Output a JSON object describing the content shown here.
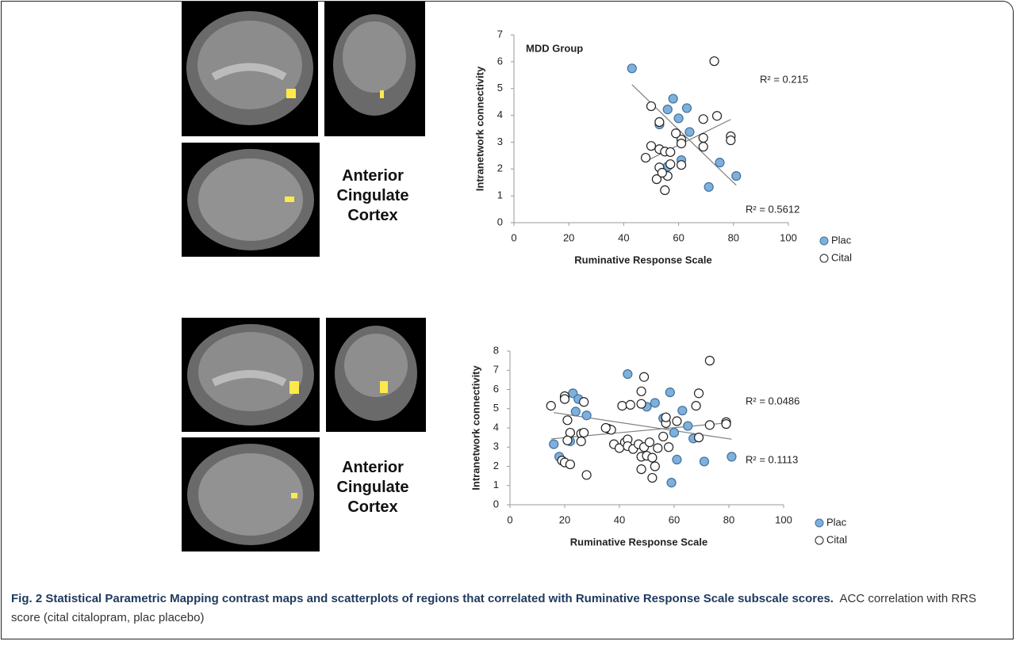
{
  "chart_data": [
    {
      "type": "scatter",
      "xlabel": "Ruminative Response Scale",
      "ylabel": "Intranetwork connectivity",
      "xlim": [
        0,
        100
      ],
      "xticks": [
        0,
        20,
        40,
        60,
        80,
        100
      ],
      "ylim": [
        0,
        7
      ],
      "yticks": [
        0,
        1,
        2,
        3,
        4,
        5,
        6,
        7
      ],
      "trendline": true,
      "legend": "lower right",
      "annotations": [
        "MDD Group",
        "R² = 0.215",
        "R² = 0.5612"
      ],
      "series": [
        {
          "name": "Plac",
          "color": "#7fb0dc",
          "x": [
            43,
            58,
            56,
            63,
            60,
            53,
            64,
            61,
            56,
            75,
            81,
            71
          ],
          "values": [
            5.75,
            4.62,
            4.22,
            4.27,
            3.89,
            3.66,
            3.38,
            2.33,
            2.09,
            2.24,
            1.74,
            1.33
          ]
        },
        {
          "name": "Cital",
          "color": "#ffffff",
          "x": [
            73,
            50,
            53,
            74,
            69,
            79,
            79,
            69,
            69,
            61,
            59,
            61,
            50,
            53,
            55,
            57,
            48,
            53,
            57,
            61,
            56,
            52,
            54,
            55
          ],
          "values": [
            6.02,
            4.34,
            3.75,
            3.98,
            3.86,
            3.22,
            3.07,
            3.16,
            2.83,
            3.1,
            3.33,
            2.95,
            2.86,
            2.74,
            2.65,
            2.63,
            2.42,
            2.06,
            2.18,
            2.15,
            1.74,
            1.62,
            1.86,
            1.21
          ]
        }
      ]
    },
    {
      "type": "scatter",
      "xlabel": "Ruminative Response Scale",
      "ylabel": "Intranetwork connectivity",
      "xlim": [
        0,
        100
      ],
      "xticks": [
        0,
        20,
        40,
        60,
        80,
        100
      ],
      "ylim": [
        0,
        8
      ],
      "yticks": [
        0,
        1,
        2,
        3,
        4,
        5,
        6,
        7,
        8
      ],
      "trendline": true,
      "legend": "lower right",
      "annotations": [
        "R² = 0.0486",
        "R² = 0.1113"
      ],
      "series": [
        {
          "name": "Plac",
          "color": "#7fb0dc",
          "x": [
            16,
            18,
            20,
            22,
            23,
            24,
            25,
            28,
            43,
            50,
            53,
            56,
            58.5,
            59,
            60,
            61,
            63,
            65,
            71,
            67,
            81
          ],
          "values": [
            3.15,
            2.5,
            5.6,
            3.3,
            5.8,
            4.85,
            5.5,
            4.65,
            6.8,
            5.1,
            5.3,
            4.5,
            5.85,
            1.15,
            3.75,
            2.35,
            4.9,
            4.1,
            2.25,
            3.45,
            2.5
          ]
        },
        {
          "name": "Cital",
          "color": "#ffffff",
          "x": [
            15,
            20,
            20,
            21,
            22,
            21,
            19,
            20,
            22,
            27,
            26,
            27,
            28,
            26,
            36,
            37,
            38,
            40,
            42,
            43,
            41,
            44,
            43,
            45,
            47,
            48,
            48,
            49,
            48,
            48,
            49,
            50,
            51,
            52,
            52,
            54,
            53,
            57,
            56,
            57,
            58,
            61,
            68,
            69,
            69,
            73,
            73,
            79,
            79,
            35
          ],
          "values": [
            5.15,
            5.65,
            5.5,
            4.4,
            3.75,
            3.35,
            2.3,
            2.2,
            2.1,
            5.35,
            3.7,
            3.75,
            1.55,
            3.3,
            3.95,
            3.9,
            3.15,
            2.95,
            3.25,
            3.4,
            5.15,
            5.2,
            3.05,
            2.9,
            3.15,
            2.5,
            1.85,
            3.0,
            5.25,
            5.9,
            6.65,
            2.55,
            3.25,
            1.4,
            2.45,
            2.95,
            2.0,
            4.25,
            3.55,
            4.55,
            3.0,
            4.35,
            5.15,
            5.8,
            3.5,
            7.5,
            4.15,
            4.3,
            4.2,
            4.0
          ]
        }
      ]
    }
  ],
  "panels": [
    {
      "region_label": "Anterior\nCingulate\nCortex"
    },
    {
      "region_label": "Anterior\nCingulate\nCortex"
    }
  ],
  "caption": {
    "title": "Fig. 2 Statistical Parametric Mapping contrast maps and scatterplots of regions that correlated with Ruminative Response Scale subscale scores.",
    "text": "ACC correlation with RRS score (cital citalopram, plac placebo)"
  }
}
